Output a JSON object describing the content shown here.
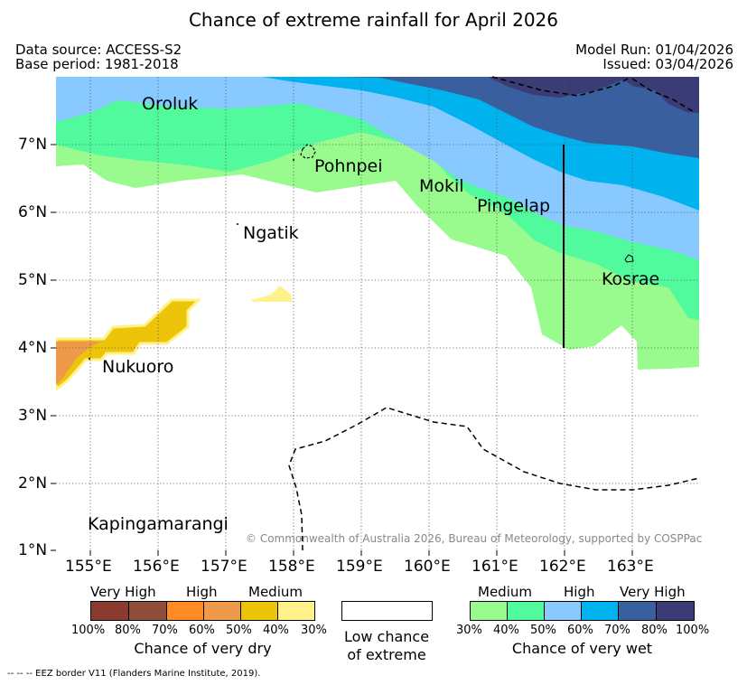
{
  "header": {
    "title": "Chance of extreme rainfall for April 2026",
    "data_source": "Data source: ACCESS-S2",
    "base_period": "Base period: 1981-2018",
    "model_run": "Model Run: 01/04/2026",
    "issued": "Issued: 03/04/2026"
  },
  "map": {
    "lat_labels": [
      "7°N",
      "6°N",
      "5°N",
      "4°N",
      "3°N",
      "2°N",
      "1°N"
    ],
    "lon_labels": [
      "155°E",
      "156°E",
      "157°E",
      "158°E",
      "159°E",
      "160°E",
      "161°E",
      "162°E",
      "163°E"
    ],
    "places": {
      "oroluk": "Oroluk",
      "pohnpei": "Pohnpei",
      "mokil": "Mokil",
      "pingelap": "Pingelap",
      "ngatik": "Ngatik",
      "kosrae": "Kosrae",
      "nukuoro": "Nukuoro",
      "kapingamarangi": "Kapingamarangi"
    },
    "copyright": "© Commonwealth of Australia 2026, Bureau of Meteorology, supported by COSPPac"
  },
  "legend": {
    "dry": {
      "tiers": [
        "Very High",
        "High",
        "Medium"
      ],
      "percents": [
        "100%",
        "80%",
        "70%",
        "60%",
        "50%",
        "40%",
        "30%"
      ],
      "colors": [
        "#8b3a2f",
        "#8e4e3b",
        "#ff8a26",
        "#ee9a4a",
        "#ecc40a",
        "#fff28a"
      ],
      "caption": "Chance of very dry"
    },
    "low": {
      "line1": "Low chance",
      "line2": "of extreme"
    },
    "wet": {
      "tiers": [
        "Medium",
        "High",
        "Very High"
      ],
      "percents": [
        "30%",
        "40%",
        "50%",
        "60%",
        "70%",
        "80%",
        "100%"
      ],
      "colors": [
        "#99fa8e",
        "#52fa9e",
        "#88caff",
        "#00b2ee",
        "#3a5f9e",
        "#3b3b75"
      ],
      "caption": "Chance of very wet"
    }
  },
  "footer": {
    "eez_note": "-- -- -- EEZ border V11 (Flanders Marine Institute, 2019)."
  },
  "colors": {
    "wet_medium_low": "#99fa8e",
    "wet_medium_high": "#52fa9e",
    "wet_high_low": "#88caff",
    "wet_high_high": "#00b2ee",
    "wet_very_high_low": "#3a5f9e",
    "wet_very_high_high": "#3b3b75",
    "dry_medium_low": "#fff28a",
    "dry_medium_high": "#ecc40a",
    "dry_high_low": "#ee9a4a"
  }
}
